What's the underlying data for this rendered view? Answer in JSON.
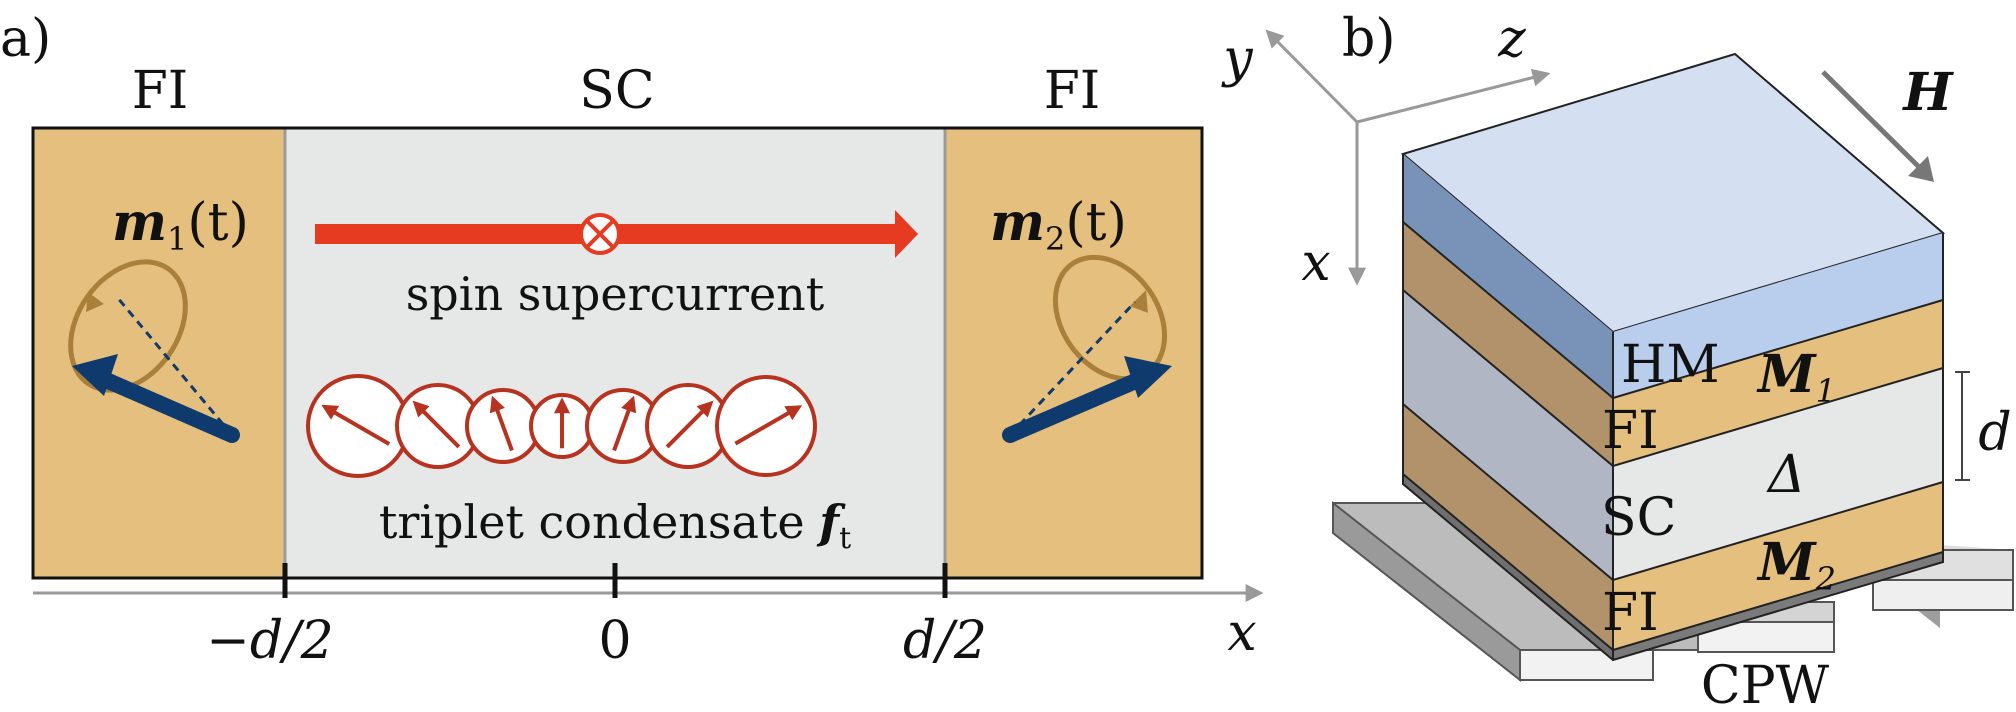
{
  "panel_a": {
    "label": "a)",
    "region_left": "FI",
    "region_center": "SC",
    "region_right": "FI",
    "m1_symbol": "m",
    "m1_sub": "1",
    "m1_arg": "(t)",
    "m2_symbol": "m",
    "m2_sub": "2",
    "m2_arg": "(t)",
    "current_caption": "spin supercurrent",
    "condensate_caption": "triplet condensate ",
    "condensate_symbol": "f",
    "condensate_sub": "t",
    "ticks": [
      "−d/2",
      "0",
      "d/2"
    ],
    "axis_label": "x",
    "spin_angles_deg": [
      -150,
      -135,
      -110,
      -90,
      -70,
      -45,
      -30
    ]
  },
  "panel_b": {
    "label": "b)",
    "axis_y": "y",
    "axis_z": "z",
    "axis_x": "x",
    "field_label": "H",
    "layers": [
      "HM",
      "FI",
      "SC",
      "FI"
    ],
    "m1_symbol": "M",
    "m1_sub": "1",
    "delta_symbol": "Δ",
    "m2_symbol": "M",
    "m2_sub": "2",
    "thickness_label": "d",
    "substrate_label": "CPW"
  },
  "colors": {
    "fi": "#e5bf7d",
    "sc": "#e6e8e8",
    "hm": "#b9cdec",
    "arrow_current": "#e63a21",
    "spin": "#b7321f",
    "moment": "#0f3a6e",
    "precession": "#a8803c"
  }
}
